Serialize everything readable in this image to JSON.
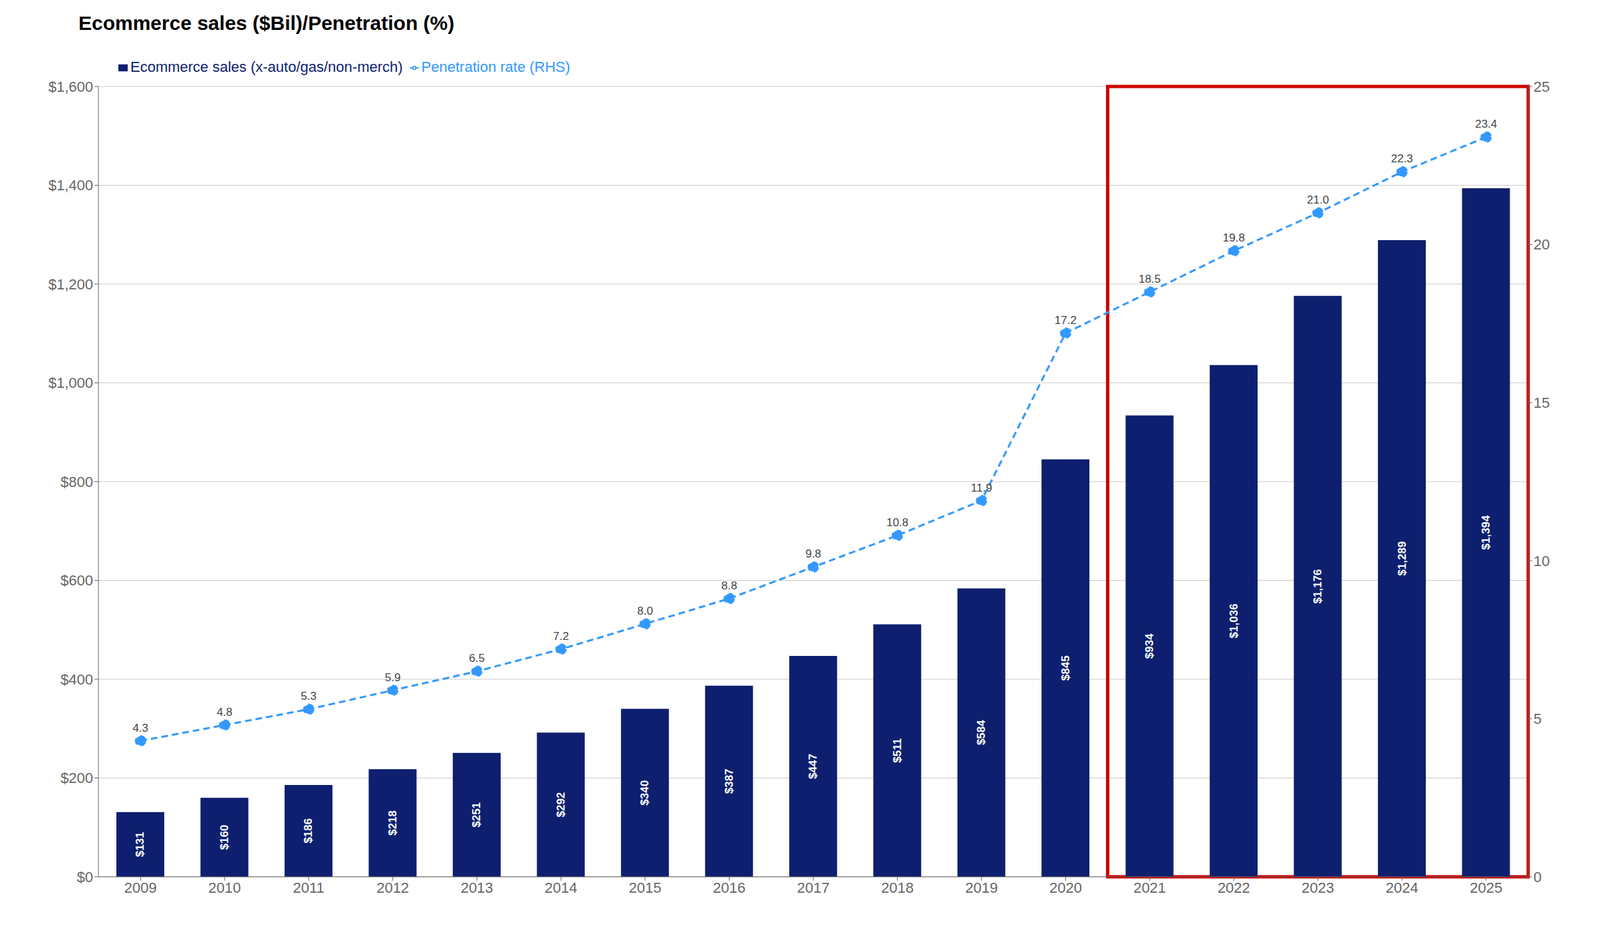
{
  "chart_data": {
    "type": "bar",
    "title": "Ecommerce sales ($Bil)/Penetration (%)",
    "categories": [
      "2009",
      "2010",
      "2011",
      "2012",
      "2013",
      "2014",
      "2015",
      "2016",
      "2017",
      "2018",
      "2019",
      "2020",
      "2021",
      "2022",
      "2023",
      "2024",
      "2025"
    ],
    "series": [
      {
        "name": "Ecommerce sales (x-auto/gas/non-merch)",
        "type": "bar",
        "color": "#0d1f6e",
        "values": [
          131,
          160,
          186,
          218,
          251,
          292,
          340,
          387,
          447,
          511,
          584,
          845,
          934,
          1036,
          1176,
          1289,
          1394
        ],
        "value_labels": [
          "$131",
          "$160",
          "$186",
          "$218",
          "$251",
          "$292",
          "$340",
          "$387",
          "$447",
          "$511",
          "$584",
          "$845",
          "$934",
          "$1,036",
          "$1,176",
          "$1,289",
          "$1,394"
        ]
      },
      {
        "name": "Penetration rate (RHS)",
        "type": "line",
        "axis": "y2",
        "color": "#3399ff",
        "marker": "o",
        "line_style": "dashed",
        "values": [
          4.3,
          4.8,
          5.3,
          5.9,
          6.5,
          7.2,
          8.0,
          8.8,
          9.8,
          10.8,
          11.9,
          17.2,
          18.5,
          19.8,
          21.0,
          22.3,
          23.4
        ],
        "value_labels": [
          "4.3",
          "4.8",
          "5.3",
          "5.9",
          "6.5",
          "7.2",
          "8.0",
          "8.8",
          "9.8",
          "10.8",
          "11.9",
          "17.2",
          "18.5",
          "19.8",
          "21.0",
          "22.3",
          "23.4"
        ]
      }
    ],
    "ylim": [
      0,
      1600
    ],
    "yticks": [
      {
        "value": 0,
        "label": "$0"
      },
      {
        "value": 200,
        "label": "$200"
      },
      {
        "value": 400,
        "label": "$400"
      },
      {
        "value": 600,
        "label": "$600"
      },
      {
        "value": 800,
        "label": "$800"
      },
      {
        "value": 1000,
        "label": "$1,000"
      },
      {
        "value": 1200,
        "label": "$1,200"
      },
      {
        "value": 1400,
        "label": "$1,400"
      },
      {
        "value": 1600,
        "label": "$1,600"
      }
    ],
    "y2lim": [
      0,
      25
    ],
    "y2ticks": [
      0,
      5,
      10,
      15,
      20,
      25
    ],
    "grid": true,
    "legend": "upper left",
    "data_labels": true,
    "annotations": [
      {
        "type": "rect",
        "x": [
          "2021",
          "2025"
        ],
        "color": "#cc0000"
      }
    ]
  }
}
